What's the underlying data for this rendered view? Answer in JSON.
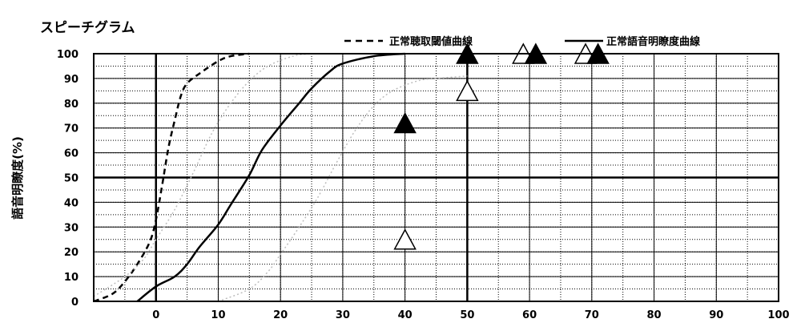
{
  "chart_data": {
    "type": "line",
    "title": "スピーチグラム",
    "ylabel": "語音明瞭度(%)",
    "xlabel": "",
    "xlim": [
      -10,
      100
    ],
    "ylim": [
      0,
      100
    ],
    "x_ticks": [
      0,
      10,
      20,
      30,
      40,
      50,
      60,
      70,
      80,
      90,
      100
    ],
    "y_ticks": [
      0,
      10,
      20,
      30,
      40,
      50,
      60,
      70,
      80,
      90,
      100
    ],
    "grid": true,
    "legend": [
      {
        "name": "正常聴取閾値曲線",
        "style": "dashed"
      },
      {
        "name": "正常語音明瞭度曲線",
        "style": "solid"
      }
    ],
    "legend_position": "top-right",
    "series": [
      {
        "name": "正常聴取閾値曲線",
        "style": "dashed",
        "x": [
          -10,
          -7,
          -5,
          -3,
          -1,
          0,
          1,
          2,
          3,
          4,
          5,
          7,
          10,
          12,
          15
        ],
        "y": [
          0,
          3,
          8,
          15,
          24,
          33,
          47,
          62,
          73,
          83,
          88,
          92,
          97,
          99,
          100
        ]
      },
      {
        "name": "正常語音明瞭度曲線",
        "style": "solid",
        "x": [
          -3,
          0,
          3,
          5,
          7,
          10,
          12,
          15,
          17,
          20,
          23,
          25,
          28,
          30,
          35,
          40
        ],
        "y": [
          0,
          6,
          10,
          15,
          22,
          31,
          39,
          51,
          61,
          71,
          80,
          86,
          93,
          96,
          99,
          100
        ]
      },
      {
        "name": "",
        "style": "dotted",
        "x": [
          -10,
          -5,
          -2,
          0,
          3,
          6,
          9,
          12,
          15,
          18,
          22,
          25
        ],
        "y": [
          2,
          10,
          17,
          25,
          37,
          52,
          68,
          80,
          89,
          95,
          99,
          100
        ]
      },
      {
        "name": "",
        "style": "dotted",
        "x": [
          10,
          15,
          18,
          20,
          23,
          26,
          29,
          32,
          35,
          38,
          42,
          45,
          50
        ],
        "y": [
          0,
          5,
          12,
          19,
          30,
          42,
          56,
          69,
          79,
          85,
          89,
          90,
          91
        ]
      }
    ],
    "markers": [
      {
        "x": 40,
        "y": 72,
        "fill": "black"
      },
      {
        "x": 40,
        "y": 25,
        "fill": "white"
      },
      {
        "x": 50,
        "y": 100,
        "fill": "black"
      },
      {
        "x": 50,
        "y": 85,
        "fill": "white"
      },
      {
        "x": 59,
        "y": 100,
        "fill": "white"
      },
      {
        "x": 61,
        "y": 100,
        "fill": "black"
      },
      {
        "x": 69,
        "y": 100,
        "fill": "white"
      },
      {
        "x": 71,
        "y": 100,
        "fill": "black"
      }
    ],
    "emphasized_lines": {
      "x": [
        0,
        50
      ],
      "y": [
        50
      ]
    }
  }
}
